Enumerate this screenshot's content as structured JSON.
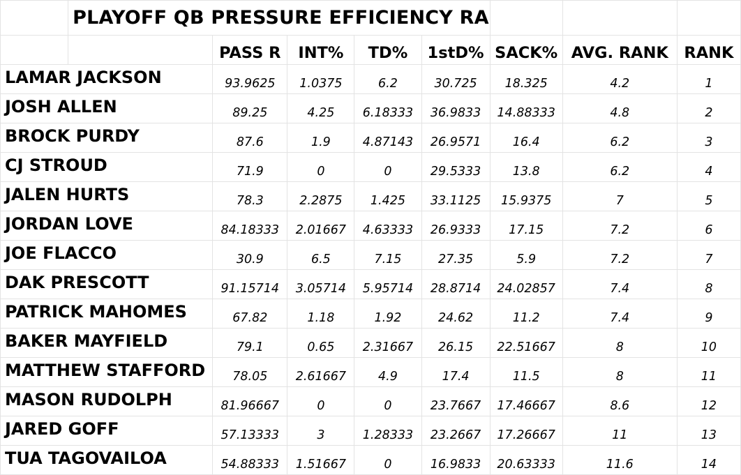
{
  "sheet": {
    "title": "PLAYOFF QB PRESSURE EFFICIENCY RANKINGS",
    "headers": [
      "PASS R",
      "INT%",
      "TD%",
      "1stD%",
      "SACK%",
      "AVG. RANK",
      "RANK"
    ],
    "rows": [
      {
        "name": "LAMAR JACKSON",
        "values": [
          "93.9625",
          "1.0375",
          "6.2",
          "30.725",
          "18.325",
          "4.2",
          "1"
        ]
      },
      {
        "name": "JOSH ALLEN",
        "values": [
          "89.25",
          "4.25",
          "6.18333",
          "36.9833",
          "14.88333",
          "4.8",
          "2"
        ]
      },
      {
        "name": "BROCK PURDY",
        "values": [
          "87.6",
          "1.9",
          "4.87143",
          "26.9571",
          "16.4",
          "6.2",
          "3"
        ]
      },
      {
        "name": "CJ STROUD",
        "values": [
          "71.9",
          "0",
          "0",
          "29.5333",
          "13.8",
          "6.2",
          "4"
        ]
      },
      {
        "name": "JALEN HURTS",
        "values": [
          "78.3",
          "2.2875",
          "1.425",
          "33.1125",
          "15.9375",
          "7",
          "5"
        ]
      },
      {
        "name": "JORDAN LOVE",
        "values": [
          "84.18333",
          "2.01667",
          "4.63333",
          "26.9333",
          "17.15",
          "7.2",
          "6"
        ]
      },
      {
        "name": "JOE FLACCO",
        "values": [
          "30.9",
          "6.5",
          "7.15",
          "27.35",
          "5.9",
          "7.2",
          "7"
        ]
      },
      {
        "name": "DAK PRESCOTT",
        "values": [
          "91.15714",
          "3.05714",
          "5.95714",
          "28.8714",
          "24.02857",
          "7.4",
          "8"
        ]
      },
      {
        "name": "PATRICK MAHOMES",
        "values": [
          "67.82",
          "1.18",
          "1.92",
          "24.62",
          "11.2",
          "7.4",
          "9"
        ]
      },
      {
        "name": "BAKER MAYFIELD",
        "values": [
          "79.1",
          "0.65",
          "2.31667",
          "26.15",
          "22.51667",
          "8",
          "10"
        ]
      },
      {
        "name": "MATTHEW STAFFORD",
        "values": [
          "78.05",
          "2.61667",
          "4.9",
          "17.4",
          "11.5",
          "8",
          "11"
        ]
      },
      {
        "name": "MASON RUDOLPH",
        "values": [
          "81.96667",
          "0",
          "0",
          "23.7667",
          "17.46667",
          "8.6",
          "12"
        ]
      },
      {
        "name": "JARED GOFF",
        "values": [
          "57.13333",
          "3",
          "1.28333",
          "23.2667",
          "17.26667",
          "11",
          "13"
        ]
      },
      {
        "name": "TUA TAGOVAILOA",
        "values": [
          "54.88333",
          "1.51667",
          "0",
          "16.9833",
          "20.63333",
          "11.6",
          "14"
        ]
      }
    ]
  }
}
